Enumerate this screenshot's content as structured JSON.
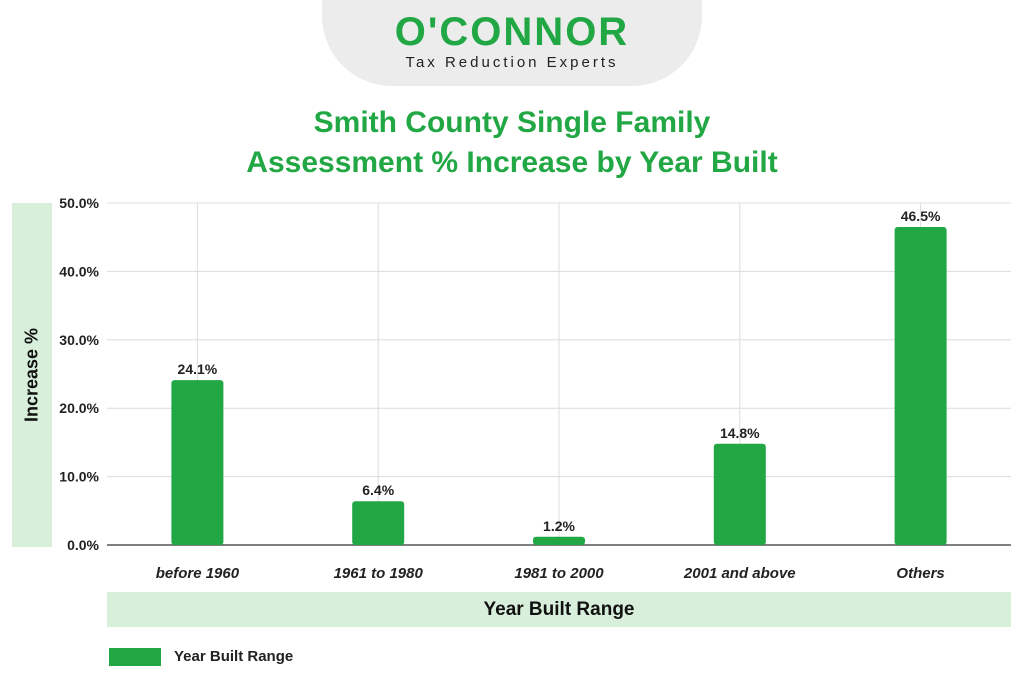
{
  "brand": {
    "name": "O'CONNOR",
    "tagline": "Tax Reduction Experts"
  },
  "colors": {
    "bar": "#22a745",
    "accent": "#22a745",
    "band": "#d8f0db",
    "grid": "#dcdcdc"
  },
  "chart_data": {
    "type": "bar",
    "title": [
      "Smith County Single Family",
      "Assessment % Increase by Year Built"
    ],
    "xlabel": "Year Built Range",
    "ylabel": "Increase %",
    "categories": [
      "before 1960",
      "1961 to 1980",
      "1981 to 2000",
      "2001 and above",
      "Others"
    ],
    "series": [
      {
        "name": "Year Built Range",
        "values": [
          24.1,
          6.4,
          1.2,
          14.8,
          46.5
        ]
      }
    ],
    "data_labels": [
      "24.1%",
      "6.4%",
      "1.2%",
      "14.8%",
      "46.5%"
    ],
    "ylim": [
      0,
      50
    ],
    "yticks": [
      "0.0%",
      "10.0%",
      "20.0%",
      "30.0%",
      "40.0%",
      "50.0%"
    ],
    "grid": true,
    "legend_position": "bottom-left"
  }
}
